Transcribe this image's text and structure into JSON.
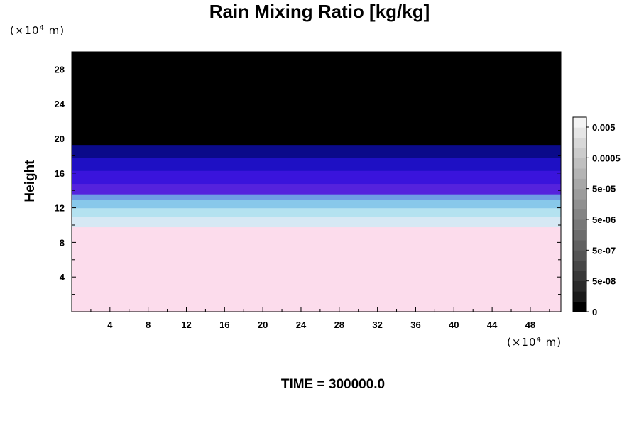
{
  "chart_data": {
    "type": "heatmap",
    "title": "Rain Mixing Ratio [kg/kg]",
    "ylabel": "Height",
    "y_unit": {
      "prefix": "(×10",
      "exp": "4",
      "suffix": " m)"
    },
    "x_unit": {
      "prefix": "(×10",
      "exp": "4",
      "suffix": " m)"
    },
    "footer": "TIME = 300000.0",
    "xlim": [
      0,
      51.2
    ],
    "ylim": [
      0,
      30
    ],
    "x_ticks": [
      4,
      8,
      12,
      16,
      20,
      24,
      28,
      32,
      36,
      40,
      44,
      48
    ],
    "y_ticks": [
      4,
      8,
      12,
      16,
      20,
      24,
      28
    ],
    "layers": [
      {
        "y_from": 0,
        "y_to": 9.8,
        "color": "#fcdcec"
      },
      {
        "y_from": 9.8,
        "y_to": 11.0,
        "color": "#d6e8f4"
      },
      {
        "y_from": 11.0,
        "y_to": 12.0,
        "color": "#b4e2f0"
      },
      {
        "y_from": 12.0,
        "y_to": 13.0,
        "color": "#88c8ea"
      },
      {
        "y_from": 13.0,
        "y_to": 13.6,
        "color": "#6f9ce4"
      },
      {
        "y_from": 13.6,
        "y_to": 14.8,
        "color": "#5522dd"
      },
      {
        "y_from": 14.8,
        "y_to": 16.3,
        "color": "#3a14dc"
      },
      {
        "y_from": 16.3,
        "y_to": 17.8,
        "color": "#1e10c4"
      },
      {
        "y_from": 17.8,
        "y_to": 19.3,
        "color": "#0a0a8a"
      },
      {
        "y_from": 19.3,
        "y_to": 30,
        "color": "#000000"
      }
    ],
    "colorbar": {
      "labels": [
        "0.005",
        "0.0005",
        "5e-05",
        "5e-06",
        "5e-07",
        "5e-08",
        "0"
      ],
      "colors": [
        "#000000",
        "#1a1a1a",
        "#2a2a2a",
        "#383838",
        "#464646",
        "#545454",
        "#606060",
        "#6c6c6c",
        "#787878",
        "#848484",
        "#909090",
        "#9c9c9c",
        "#a8a8a8",
        "#b4b4b4",
        "#c0c0c0",
        "#cccccc",
        "#d8d8d8",
        "#e6e6e6",
        "#f4f4f4"
      ]
    }
  }
}
